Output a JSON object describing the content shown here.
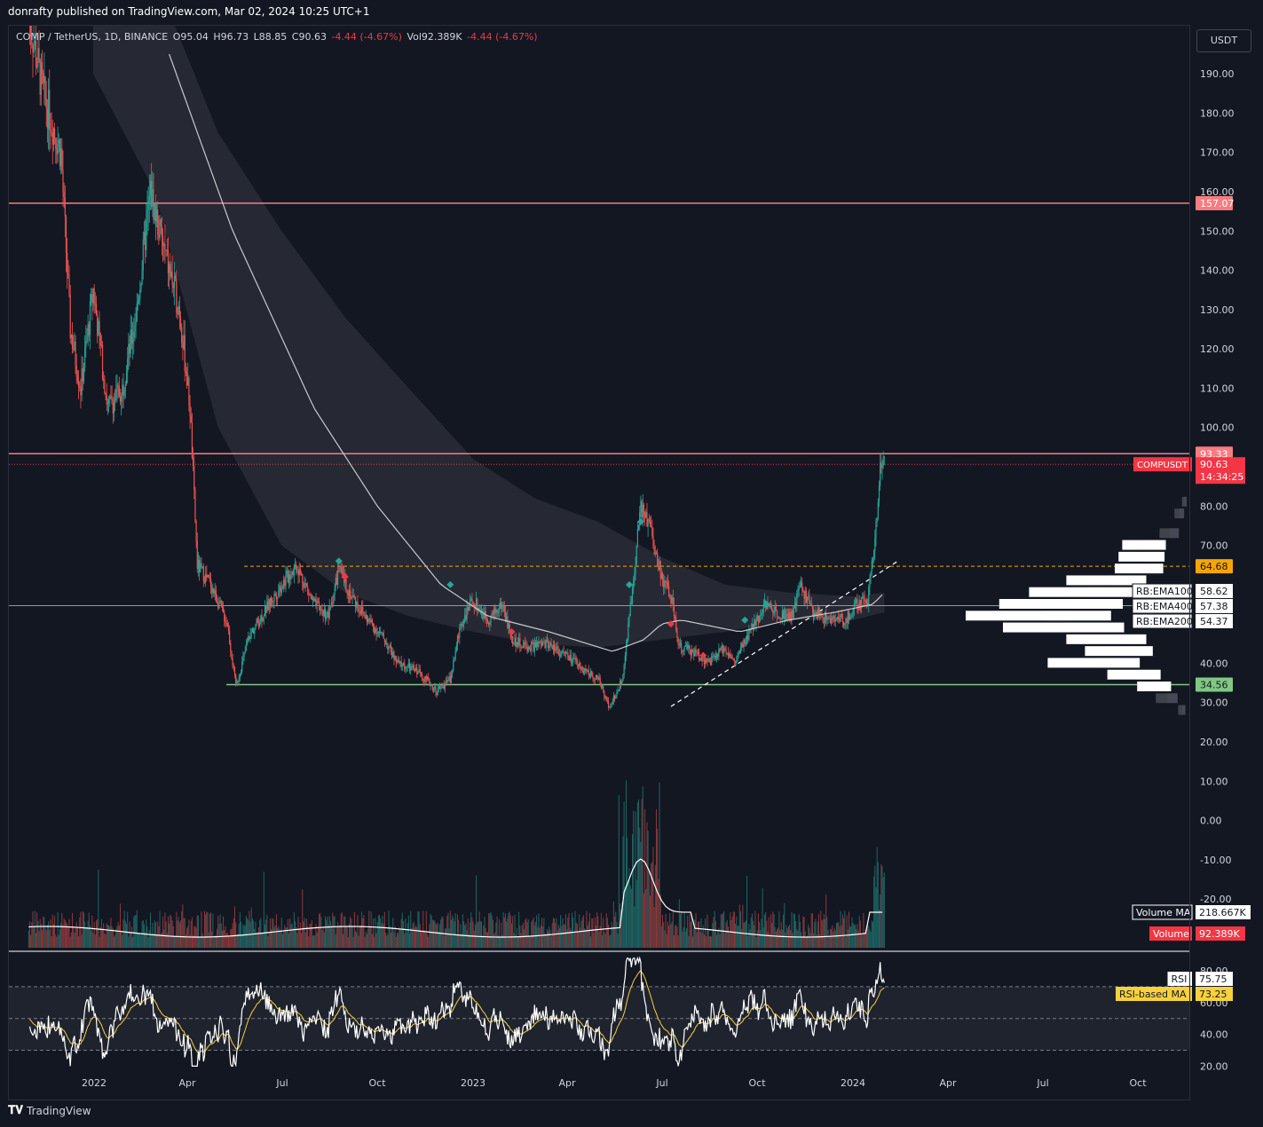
{
  "header": {
    "publisher": "donrafty published on TradingView.com, Mar 02, 2024 10:25 UTC+1"
  },
  "legend": {
    "symbol": "COMP / TetherUS, 1D, BINANCE",
    "open": "O95.04",
    "high": "H96.73",
    "low": "L88.85",
    "close": "C90.63",
    "change": "-4.44 (-4.67%)",
    "volume": "Vol92.389K",
    "volume_change": "-4.44 (-4.67%)"
  },
  "currency": "USDT",
  "footer": {
    "brand": "TradingView",
    "icon": "tradingview-logo-icon"
  },
  "colors": {
    "background": "#131722",
    "bull": "#26a69a",
    "bear": "#ef5350",
    "resistance": "#f77c80",
    "support": "#81c784",
    "rsi": "#ffffff",
    "rsi_ma": "#f7d13c",
    "band": "#2a2d36"
  },
  "chart_data": [
    {
      "type": "candlestick",
      "x_ticks": [
        "2022",
        "Apr",
        "Jul",
        "Oct",
        "2023",
        "Apr",
        "Jul",
        "Oct",
        "2024",
        "Apr",
        "Jul",
        "Oct"
      ],
      "y_ticks": [
        "190.00",
        "180.00",
        "170.00",
        "160.00",
        "150.00",
        "140.00",
        "130.00",
        "120.00",
        "110.00",
        "100.00",
        "80.00",
        "70.00",
        "40.00",
        "30.00",
        "20.00",
        "10.00",
        "0.00",
        "-10.00",
        "-20.00"
      ],
      "ylim": [
        -20,
        195
      ],
      "series_path": [
        [
          "2021-12-01",
          205
        ],
        [
          "2021-12-15",
          185
        ],
        [
          "2022-01-01",
          170
        ],
        [
          "2022-01-10",
          125
        ],
        [
          "2022-01-20",
          110
        ],
        [
          "2022-02-01",
          135
        ],
        [
          "2022-02-15",
          105
        ],
        [
          "2022-03-01",
          110
        ],
        [
          "2022-03-15",
          130
        ],
        [
          "2022-03-28",
          160
        ],
        [
          "2022-04-10",
          145
        ],
        [
          "2022-04-25",
          130
        ],
        [
          "2022-05-05",
          105
        ],
        [
          "2022-05-12",
          65
        ],
        [
          "2022-05-25",
          60
        ],
        [
          "2022-06-10",
          50
        ],
        [
          "2022-06-18",
          34
        ],
        [
          "2022-07-01",
          47
        ],
        [
          "2022-07-15",
          53
        ],
        [
          "2022-08-01",
          60
        ],
        [
          "2022-08-15",
          65
        ],
        [
          "2022-09-01",
          55
        ],
        [
          "2022-09-15",
          52
        ],
        [
          "2022-09-25",
          64
        ],
        [
          "2022-10-05",
          58
        ],
        [
          "2022-10-20",
          52
        ],
        [
          "2022-11-08",
          46
        ],
        [
          "2022-11-20",
          40
        ],
        [
          "2022-12-10",
          38
        ],
        [
          "2022-12-28",
          33
        ],
        [
          "2023-01-10",
          36
        ],
        [
          "2023-01-20",
          50
        ],
        [
          "2023-02-01",
          56
        ],
        [
          "2023-02-15",
          51
        ],
        [
          "2023-03-01",
          55
        ],
        [
          "2023-03-10",
          46
        ],
        [
          "2023-03-25",
          44
        ],
        [
          "2023-04-15",
          45
        ],
        [
          "2023-05-01",
          42
        ],
        [
          "2023-05-20",
          38
        ],
        [
          "2023-06-01",
          36
        ],
        [
          "2023-06-12",
          29
        ],
        [
          "2023-06-25",
          36
        ],
        [
          "2023-07-05",
          62
        ],
        [
          "2023-07-12",
          80
        ],
        [
          "2023-07-20",
          75
        ],
        [
          "2023-08-01",
          62
        ],
        [
          "2023-08-10",
          57
        ],
        [
          "2023-08-18",
          44
        ],
        [
          "2023-09-01",
          43
        ],
        [
          "2023-09-15",
          40
        ],
        [
          "2023-10-01",
          44
        ],
        [
          "2023-10-10",
          40
        ],
        [
          "2023-10-25",
          48
        ],
        [
          "2023-11-08",
          55
        ],
        [
          "2023-11-20",
          53
        ],
        [
          "2023-12-05",
          52
        ],
        [
          "2023-12-12",
          60
        ],
        [
          "2023-12-25",
          53
        ],
        [
          "2024-01-10",
          51
        ],
        [
          "2024-01-25",
          51
        ],
        [
          "2024-02-05",
          55
        ],
        [
          "2024-02-15",
          56
        ],
        [
          "2024-02-22",
          73
        ],
        [
          "2024-02-28",
          92
        ],
        [
          "2024-03-02",
          90.63
        ]
      ],
      "ema_band_path": [
        [
          "2022-02-01",
          230,
          190
        ],
        [
          "2022-04-01",
          215,
          160
        ],
        [
          "2022-06-01",
          175,
          100
        ],
        [
          "2022-08-01",
          150,
          70
        ],
        [
          "2022-10-01",
          128,
          58
        ],
        [
          "2022-12-01",
          110,
          52
        ],
        [
          "2023-02-01",
          92,
          48
        ],
        [
          "2023-04-01",
          82,
          45
        ],
        [
          "2023-06-01",
          76,
          44
        ],
        [
          "2023-08-01",
          67,
          46
        ],
        [
          "2023-10-01",
          60,
          48
        ],
        [
          "2023-12-01",
          58,
          51
        ],
        [
          "2024-02-01",
          57,
          51
        ],
        [
          "2024-03-02",
          58,
          53
        ]
      ],
      "ema_line_path": [
        [
          "2022-04-15",
          195
        ],
        [
          "2022-06-15",
          150
        ],
        [
          "2022-09-01",
          105
        ],
        [
          "2022-11-01",
          80
        ],
        [
          "2023-01-01",
          60
        ],
        [
          "2023-02-15",
          52
        ],
        [
          "2023-04-15",
          48
        ],
        [
          "2023-06-15",
          43
        ],
        [
          "2023-07-15",
          46
        ],
        [
          "2023-08-01",
          50
        ],
        [
          "2023-08-20",
          51
        ],
        [
          "2023-10-15",
          48
        ],
        [
          "2023-12-01",
          51
        ],
        [
          "2024-01-15",
          53
        ],
        [
          "2024-02-20",
          55
        ],
        [
          "2024-03-02",
          58
        ]
      ],
      "horizontal_levels": [
        {
          "value": 157.07,
          "label": "157.07",
          "kind": "resistance"
        },
        {
          "value": 93.33,
          "label": "93.33",
          "kind": "resistance"
        },
        {
          "value": 34.56,
          "label": "34.56",
          "kind": "support"
        },
        {
          "value": 64.68,
          "label": "64.68",
          "kind": "dashed"
        },
        {
          "value": 58.62,
          "label": "58.62",
          "kind": "ema",
          "name": "RB:EMA100"
        },
        {
          "value": 57.38,
          "label": "57.38",
          "kind": "ema",
          "name": "RB:EMA400"
        },
        {
          "value": 54.37,
          "label": "54.37",
          "kind": "ema",
          "name": "RB:EMA200"
        }
      ],
      "trendline": {
        "from": [
          "2023-08-10",
          29
        ],
        "to": [
          "2024-03-15",
          66
        ]
      },
      "last_price": {
        "symbol": "COMPUSDT",
        "value": "90.63",
        "countdown": "14:34:25"
      },
      "volume": {
        "ma_label": "Volume MA",
        "ma_value": "218.667K",
        "label": "Volume",
        "value": "92.389K"
      },
      "volume_profile_rows": [
        {
          "price": 81,
          "width": 0.02
        },
        {
          "price": 78,
          "width": 0.04
        },
        {
          "price": 73,
          "width": 0.08
        },
        {
          "price": 70,
          "width": 0.18
        },
        {
          "price": 67,
          "width": 0.19
        },
        {
          "price": 64,
          "width": 0.2
        },
        {
          "price": 61,
          "width": 0.33
        },
        {
          "price": 58,
          "width": 0.43
        },
        {
          "price": 55,
          "width": 0.51
        },
        {
          "price": 52,
          "width": 0.6
        },
        {
          "price": 49,
          "width": 0.5
        },
        {
          "price": 46,
          "width": 0.33
        },
        {
          "price": 43,
          "width": 0.28
        },
        {
          "price": 40,
          "width": 0.38
        },
        {
          "price": 37,
          "width": 0.22
        },
        {
          "price": 34,
          "width": 0.14
        },
        {
          "price": 31,
          "width": 0.09
        },
        {
          "price": 28,
          "width": 0.03
        }
      ],
      "markers": [
        {
          "date": "2022-09-25",
          "value": 66,
          "kind": "buy"
        },
        {
          "date": "2022-10-01",
          "value": 62,
          "kind": "sell"
        },
        {
          "date": "2023-01-10",
          "value": 60,
          "kind": "buy"
        },
        {
          "date": "2023-03-10",
          "value": 48,
          "kind": "sell"
        },
        {
          "date": "2023-07-01",
          "value": 60,
          "kind": "buy"
        },
        {
          "date": "2023-07-12",
          "value": 76,
          "kind": "buy"
        },
        {
          "date": "2023-08-10",
          "value": 50,
          "kind": "sell"
        },
        {
          "date": "2023-09-10",
          "value": 42,
          "kind": "sell"
        },
        {
          "date": "2023-10-20",
          "value": 51,
          "kind": "buy"
        },
        {
          "date": "2023-11-10",
          "value": 55,
          "kind": "buy"
        }
      ]
    },
    {
      "type": "line",
      "title": "RSI",
      "y_ticks": [
        "80.00",
        "60.00",
        "40.00",
        "20.00"
      ],
      "ylim": [
        15,
        90
      ],
      "bands": [
        30,
        50,
        70
      ],
      "series": [
        {
          "name": "RSI",
          "value_label": "75.75"
        },
        {
          "name": "RSI-based MA",
          "value_label": "73.25"
        }
      ]
    }
  ]
}
